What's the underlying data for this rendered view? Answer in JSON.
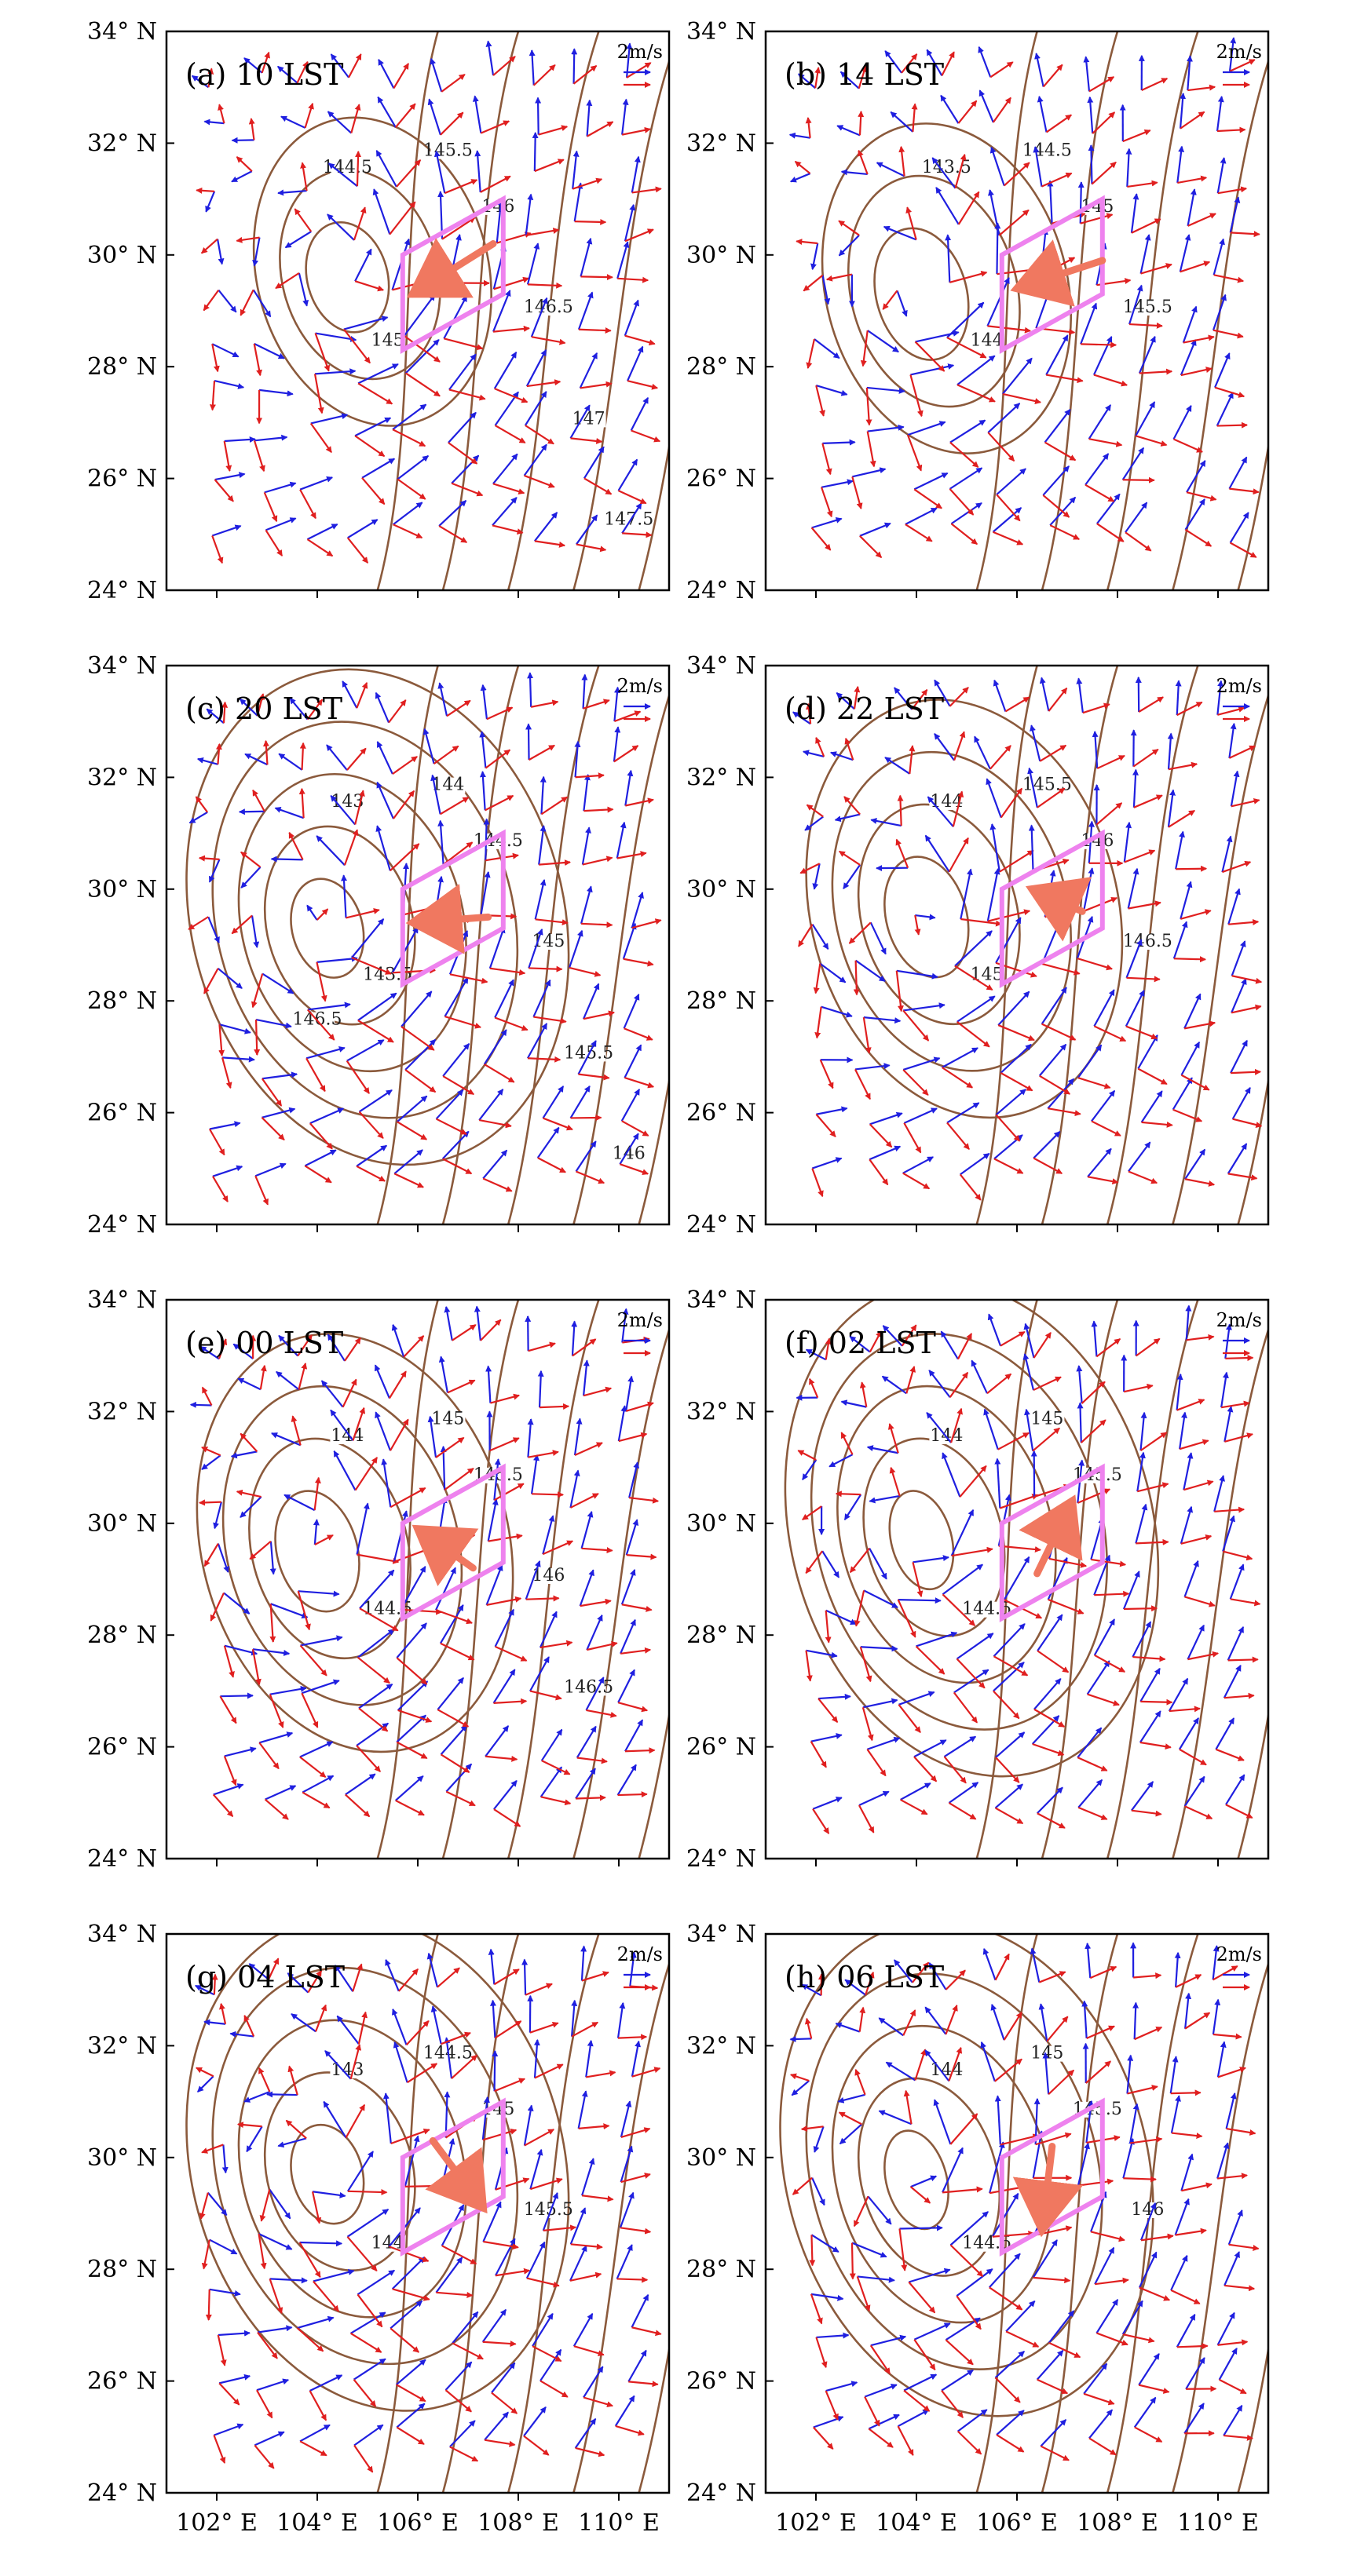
{
  "legend": {
    "scale_label": "2m/s",
    "colors": {
      "series_blue": "#1f1fe0",
      "series_red": "#e01f1f"
    }
  },
  "colors": {
    "contour": "#8b5a3c",
    "box": "#ee82ee",
    "mean_arrow": "#f07860"
  },
  "chart_data": {
    "type": "vector-contour-map",
    "layout": "4 rows x 2 columns",
    "x_ticks": [
      "102° E",
      "104° E",
      "106° E",
      "108° E",
      "110° E"
    ],
    "y_ticks": [
      "24° N",
      "26° N",
      "28° N",
      "30° N",
      "32° N",
      "34° N"
    ],
    "lon_range": [
      101,
      111
    ],
    "lat_range": [
      24,
      34
    ],
    "box_corners": [
      [
        105.7,
        28.3
      ],
      [
        107.7,
        29.3
      ],
      [
        107.7,
        31.0
      ],
      [
        105.7,
        30.0
      ]
    ],
    "panels": [
      {
        "label": "(a) 10 LST",
        "contours": [
          "144.5",
          "145",
          "145.5",
          "146",
          "146.5",
          "147",
          "147.5"
        ],
        "mean_vector": {
          "from": [
            107.5,
            30.2
          ],
          "to": [
            105.9,
            29.3
          ]
        }
      },
      {
        "label": "(b) 14 LST",
        "contours": [
          "143.5",
          "144",
          "144.5",
          "145",
          "145.5"
        ],
        "mean_vector": {
          "from": [
            107.7,
            29.9
          ],
          "to": [
            106.0,
            29.4
          ]
        }
      },
      {
        "label": "(c) 20 LST",
        "contours": [
          "143",
          "143.5",
          "144",
          "144.5",
          "145",
          "145.5",
          "146",
          "146.5"
        ],
        "mean_vector": {
          "from": [
            107.4,
            29.5
          ],
          "to": [
            105.9,
            29.4
          ]
        }
      },
      {
        "label": "(d) 22 LST",
        "contours": [
          "144",
          "145",
          "145.5",
          "146",
          "146.5"
        ],
        "mean_vector": {
          "from": [
            107.3,
            29.6
          ],
          "to": [
            106.3,
            30.0
          ]
        }
      },
      {
        "label": "(e) 00 LST",
        "contours": [
          "144",
          "144.5",
          "145",
          "145.5",
          "146",
          "146.5"
        ],
        "mean_vector": {
          "from": [
            107.1,
            29.2
          ],
          "to": [
            106.0,
            29.9
          ]
        }
      },
      {
        "label": "(f) 02 LST",
        "contours": [
          "144",
          "144.5",
          "145",
          "145.5"
        ],
        "mean_vector": {
          "from": [
            106.4,
            29.1
          ],
          "to": [
            107.1,
            30.4
          ]
        }
      },
      {
        "label": "(g) 04 LST",
        "contours": [
          "143",
          "144",
          "144.5",
          "145",
          "145.5"
        ],
        "mean_vector": {
          "from": [
            106.3,
            30.3
          ],
          "to": [
            107.3,
            29.1
          ]
        }
      },
      {
        "label": "(h) 06 LST",
        "contours": [
          "144",
          "144.5",
          "145",
          "145.5",
          "146"
        ],
        "mean_vector": {
          "from": [
            106.7,
            30.2
          ],
          "to": [
            106.5,
            28.7
          ]
        }
      }
    ]
  }
}
